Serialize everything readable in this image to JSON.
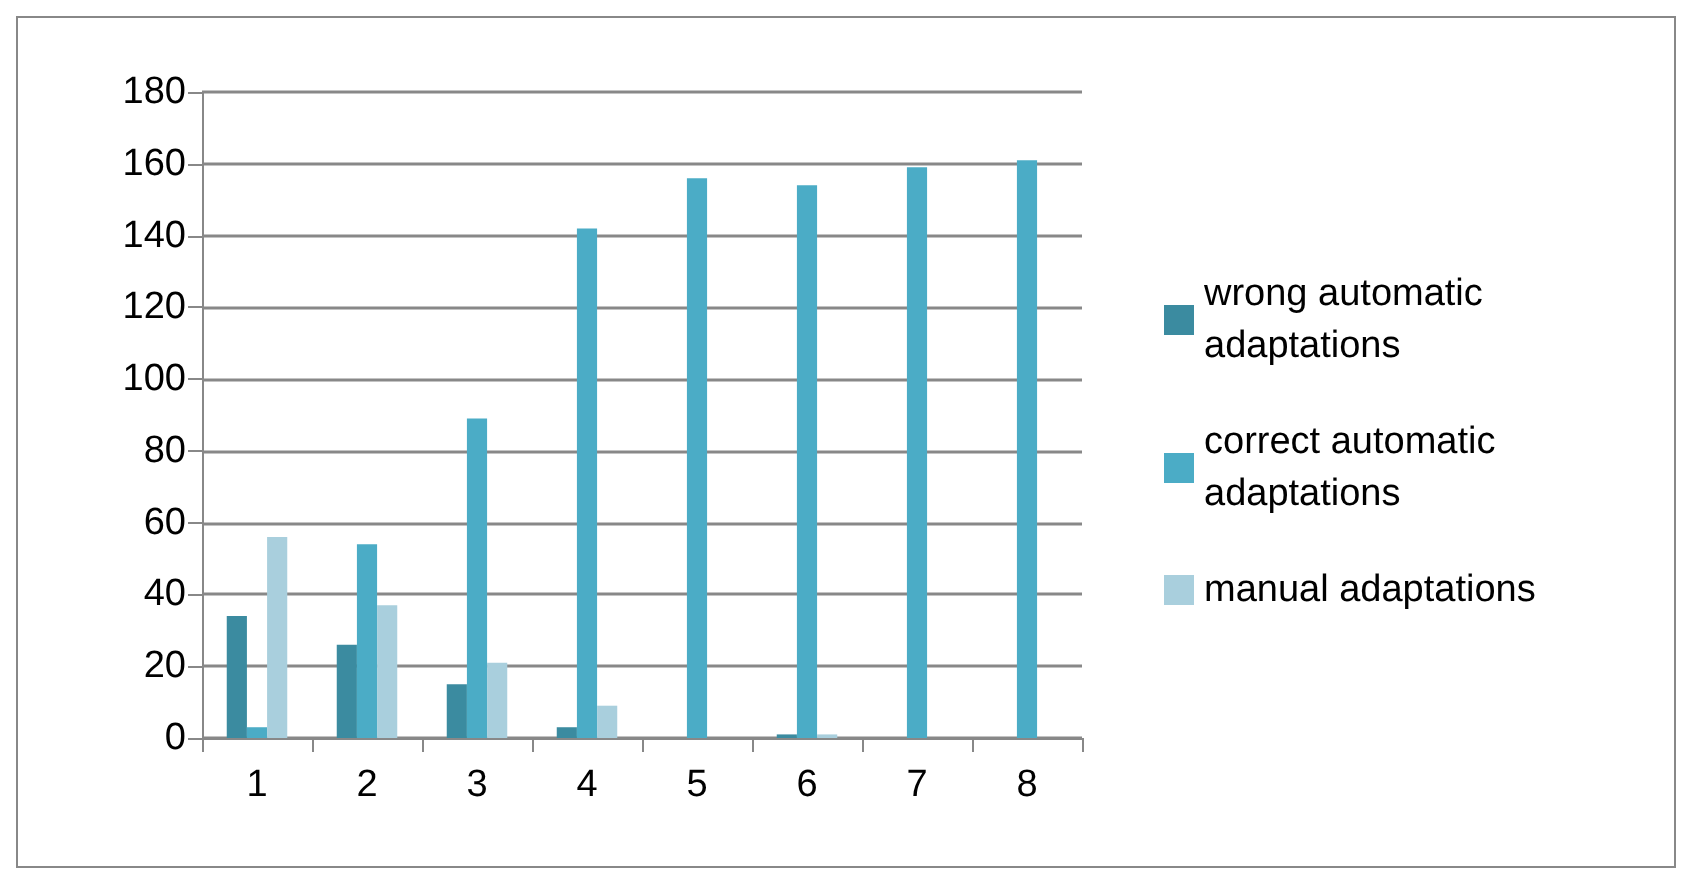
{
  "chart_data": {
    "type": "bar",
    "categories": [
      "1",
      "2",
      "3",
      "4",
      "5",
      "6",
      "7",
      "8"
    ],
    "series": [
      {
        "name": "wrong automatic adaptations",
        "color": "#3b8ba0",
        "values": [
          34,
          26,
          15,
          3,
          0,
          1,
          0,
          0
        ]
      },
      {
        "name": "correct automatic adaptations",
        "color": "#4bacc6",
        "values": [
          3,
          54,
          89,
          142,
          156,
          154,
          159,
          161
        ]
      },
      {
        "name": "manual adaptations",
        "color": "#a9cfdd",
        "values": [
          56,
          37,
          21,
          9,
          0,
          1,
          0,
          0
        ]
      }
    ],
    "ylim": [
      0,
      180
    ],
    "yticks": [
      0,
      20,
      40,
      60,
      80,
      100,
      120,
      140,
      160,
      180
    ],
    "grid": "y",
    "legend": "right"
  }
}
